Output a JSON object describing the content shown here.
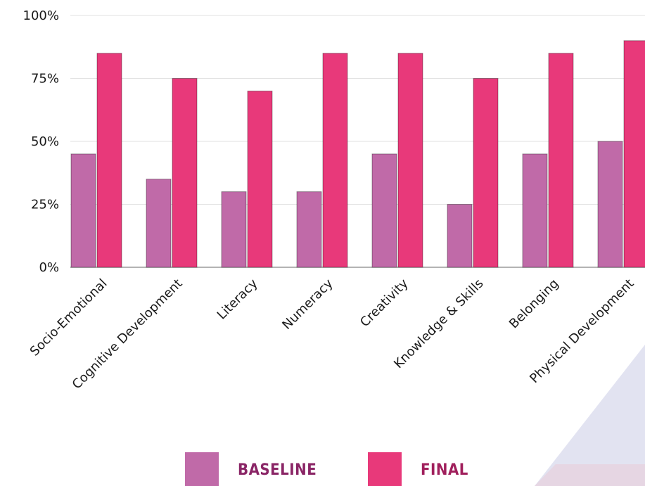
{
  "chart_data": {
    "type": "bar",
    "categories": [
      "Socio-Emotional",
      "Cognitive Development",
      "Literacy",
      "Numeracy",
      "Creativity",
      "Knowledge & Skills",
      "Belonging",
      "Physical Development"
    ],
    "series": [
      {
        "name": "BASELINE",
        "values": [
          45,
          35,
          30,
          30,
          45,
          25,
          45,
          50
        ],
        "color": "#c06aa8"
      },
      {
        "name": "FINAL",
        "values": [
          85,
          75,
          70,
          85,
          85,
          75,
          85,
          90
        ],
        "color": "#e8397a"
      }
    ],
    "yticks": [
      "0%",
      "25%",
      "50%",
      "75%",
      "100%"
    ],
    "ylim": [
      0,
      100
    ],
    "grid": true,
    "legend_position": "bottom-center",
    "legend_text_colors": [
      "#8a2566",
      "#a01f5c"
    ]
  }
}
